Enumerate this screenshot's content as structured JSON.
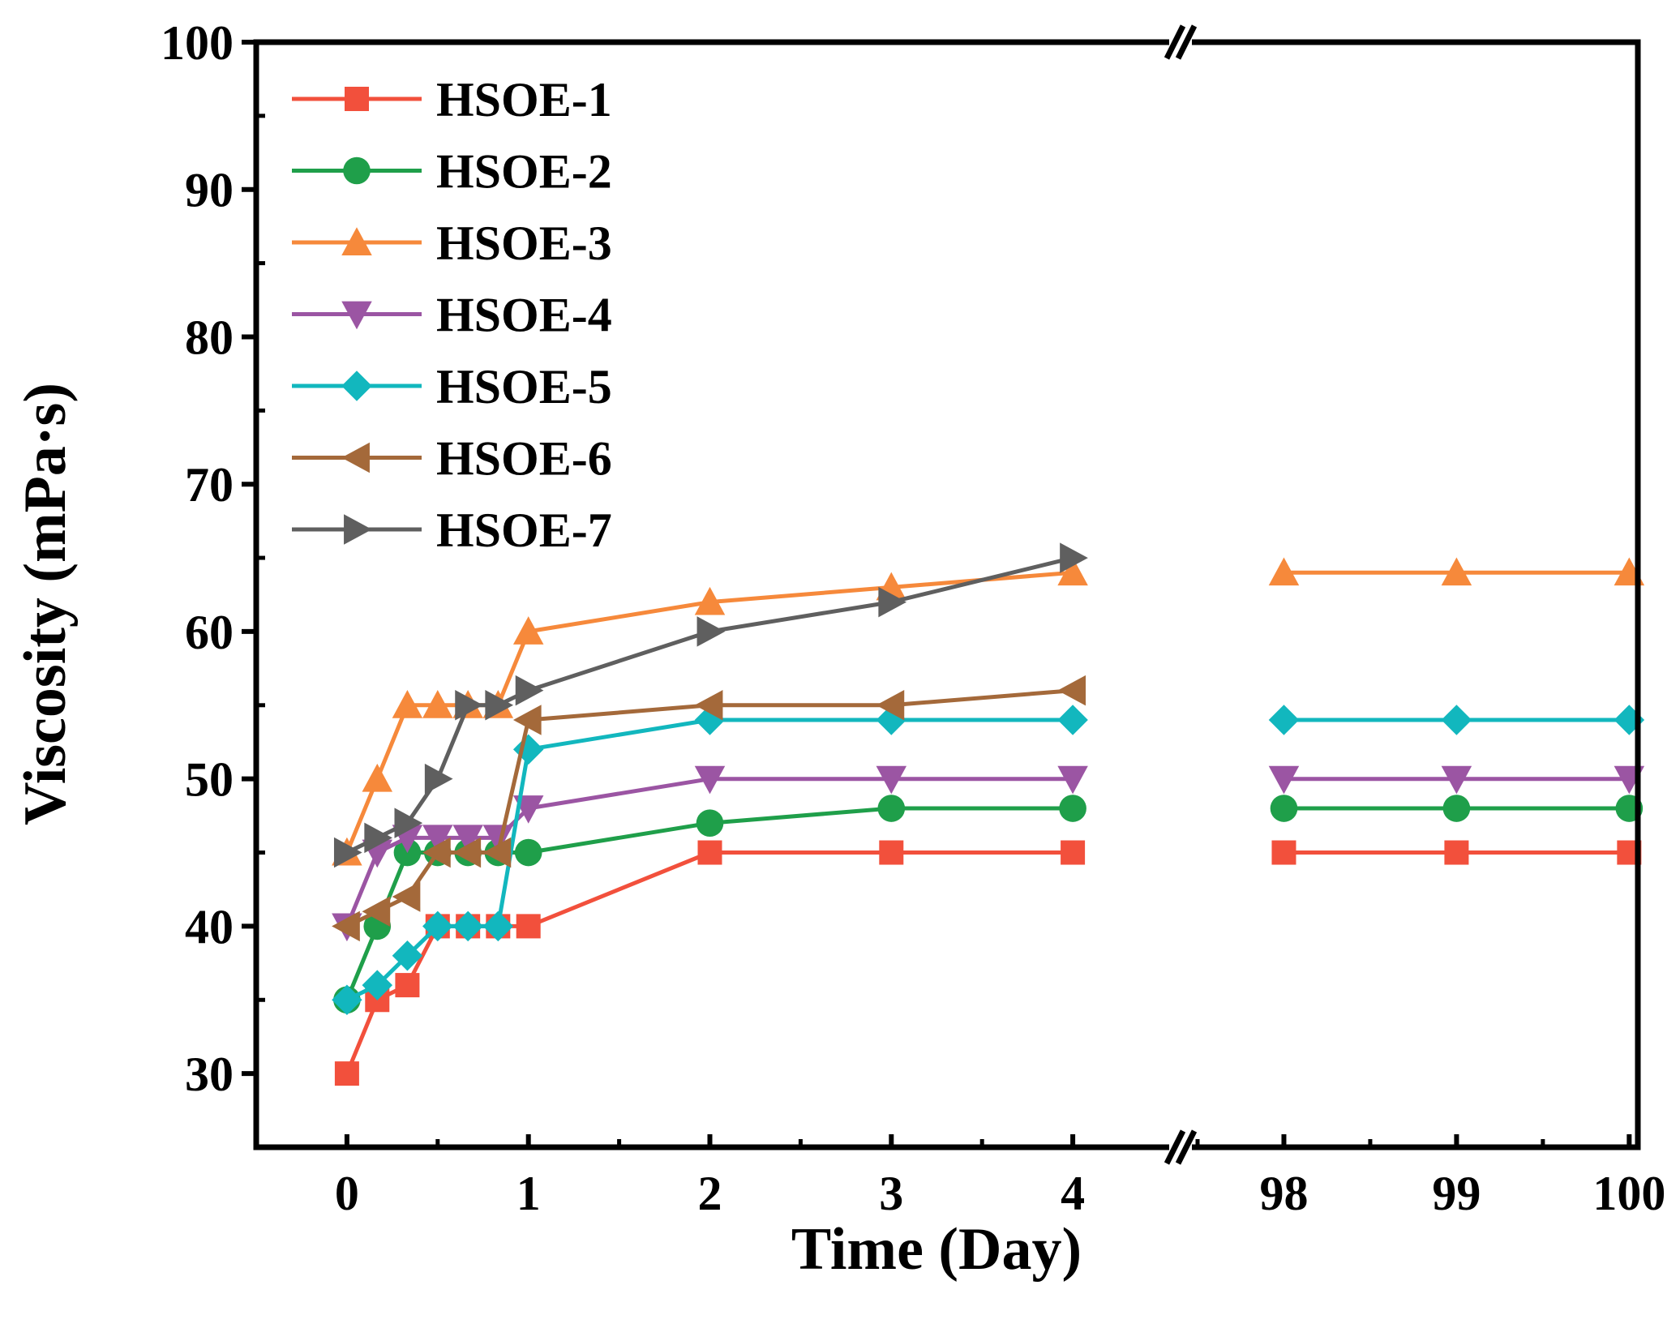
{
  "chart_data": {
    "type": "line",
    "title": "",
    "xlabel": "Time (Day)",
    "ylabel": "Viscosity (mPa·s)",
    "ylim": [
      25,
      100
    ],
    "yticks": [
      30,
      40,
      50,
      60,
      70,
      80,
      90,
      100
    ],
    "x_segments": [
      {
        "range": [
          -0.5,
          4.5
        ],
        "ticks": [
          0,
          1,
          2,
          3,
          4
        ]
      },
      {
        "range": [
          97.5,
          100.05
        ],
        "ticks": [
          98,
          99,
          100
        ]
      }
    ],
    "xtick_labels": [
      "0",
      "1",
      "2",
      "3",
      "4",
      "98",
      "99",
      "100"
    ],
    "axis_break": "//",
    "legend_position": "top-left",
    "series": [
      {
        "name": "HSOE-1",
        "color": "#f2503c",
        "marker": "square",
        "x": [
          0,
          0.167,
          0.333,
          0.5,
          0.667,
          0.833,
          1,
          2,
          3,
          4,
          98,
          99,
          100
        ],
        "values": [
          30,
          35,
          36,
          40,
          40,
          40,
          40,
          45,
          45,
          45,
          45,
          45,
          45
        ]
      },
      {
        "name": "HSOE-2",
        "color": "#1f9f4a",
        "marker": "circle",
        "x": [
          0,
          0.167,
          0.333,
          0.5,
          0.667,
          0.833,
          1,
          2,
          3,
          4,
          98,
          99,
          100
        ],
        "values": [
          35,
          40,
          45,
          45,
          45,
          45,
          45,
          47,
          48,
          48,
          48,
          48,
          48
        ]
      },
      {
        "name": "HSOE-3",
        "color": "#f6893b",
        "marker": "triangle-up",
        "x": [
          0,
          0.167,
          0.333,
          0.5,
          0.667,
          0.833,
          1,
          2,
          3,
          4,
          98,
          99,
          100
        ],
        "values": [
          45,
          50,
          55,
          55,
          55,
          55,
          60,
          62,
          63,
          64,
          64,
          64,
          64
        ]
      },
      {
        "name": "HSOE-4",
        "color": "#9b55a3",
        "marker": "triangle-down",
        "x": [
          0,
          0.167,
          0.333,
          0.5,
          0.667,
          0.833,
          1,
          2,
          3,
          4,
          98,
          99,
          100
        ],
        "values": [
          40,
          45,
          46,
          46,
          46,
          46,
          48,
          50,
          50,
          50,
          50,
          50,
          50
        ]
      },
      {
        "name": "HSOE-5",
        "color": "#12b7be",
        "marker": "diamond",
        "x": [
          0,
          0.167,
          0.333,
          0.5,
          0.667,
          0.833,
          1,
          2,
          3,
          4,
          98,
          99,
          100
        ],
        "values": [
          35,
          36,
          38,
          40,
          40,
          40,
          52,
          54,
          54,
          54,
          54,
          54,
          54
        ]
      },
      {
        "name": "HSOE-6",
        "color": "#a4693a",
        "marker": "triangle-left",
        "x": [
          0,
          0.167,
          0.333,
          0.5,
          0.667,
          0.833,
          1,
          2,
          3,
          4
        ],
        "values": [
          40,
          41,
          42,
          45,
          45,
          45,
          54,
          55,
          55,
          56
        ]
      },
      {
        "name": "HSOE-7",
        "color": "#5f5f5f",
        "marker": "triangle-right",
        "x": [
          0,
          0.167,
          0.333,
          0.5,
          0.667,
          0.833,
          1,
          2,
          3,
          4
        ],
        "values": [
          45,
          46,
          47,
          50,
          55,
          55,
          56,
          60,
          62,
          65
        ]
      }
    ]
  }
}
